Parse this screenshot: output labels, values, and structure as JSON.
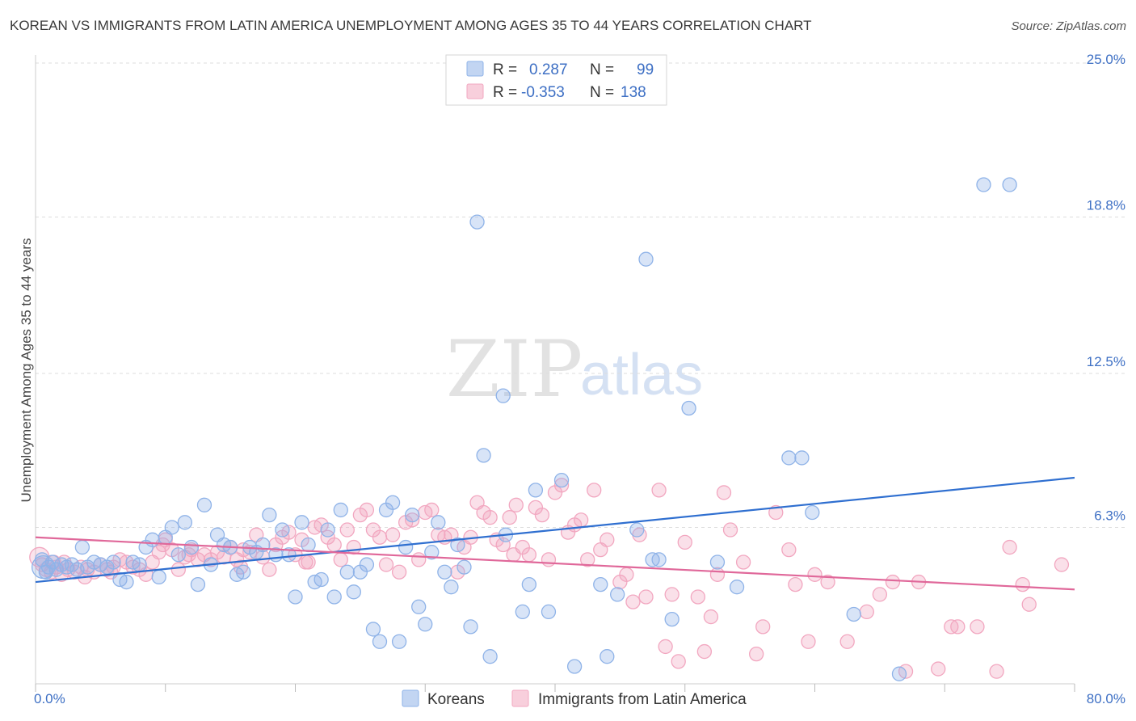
{
  "title": "KOREAN VS IMMIGRANTS FROM LATIN AMERICA UNEMPLOYMENT AMONG AGES 35 TO 44 YEARS CORRELATION CHART",
  "source": "Source: ZipAtlas.com",
  "watermark": {
    "zip": "ZIP",
    "atlas": "atlas"
  },
  "legend": {
    "rows": [
      {
        "r_label": "R =",
        "r_value": "0.287",
        "n_label": "N =",
        "n_value": "99",
        "color": "#8fb3e8"
      },
      {
        "r_label": "R =",
        "r_value": "-0.353",
        "n_label": "N =",
        "n_value": "138",
        "color": "#f2a7c0"
      }
    ]
  },
  "bottom_legend": [
    {
      "label": "Koreans",
      "color": "#8fb3e8"
    },
    {
      "label": "Immigrants from Latin America",
      "color": "#f2a7c0"
    }
  ],
  "chart_data": {
    "type": "scatter",
    "title": "KOREAN VS IMMIGRANTS FROM LATIN AMERICA UNEMPLOYMENT AMONG AGES 35 TO 44 YEARS CORRELATION CHART",
    "ylabel": "Unemployment Among Ages 35 to 44 years",
    "xlim": [
      0,
      80
    ],
    "ylim": [
      0,
      25
    ],
    "x_tick_labels": [
      "0.0%",
      "80.0%"
    ],
    "y_ticks": [
      6.3,
      12.5,
      18.8,
      25.0
    ],
    "y_tick_labels": [
      "6.3%",
      "12.5%",
      "18.8%",
      "25.0%"
    ],
    "grid": "horizontal dashed",
    "legend_position": "top-center",
    "series": [
      {
        "name": "Koreans",
        "color": "#8fb3e8",
        "line_color": "#2f6fd0",
        "trend": {
          "x": [
            0,
            80
          ],
          "y": [
            4.1,
            8.3
          ]
        },
        "points": [
          [
            0.5,
            5.0
          ],
          [
            0.8,
            4.5
          ],
          [
            1.0,
            4.7
          ],
          [
            1.3,
            4.9
          ],
          [
            1.6,
            4.6
          ],
          [
            2.0,
            4.8
          ],
          [
            2.4,
            4.7
          ],
          [
            2.8,
            4.8
          ],
          [
            3.2,
            4.6
          ],
          [
            3.6,
            5.5
          ],
          [
            4.0,
            4.7
          ],
          [
            4.5,
            4.9
          ],
          [
            5.0,
            4.8
          ],
          [
            5.5,
            4.7
          ],
          [
            6.0,
            4.9
          ],
          [
            6.5,
            4.2
          ],
          [
            7.0,
            4.1
          ],
          [
            7.5,
            4.9
          ],
          [
            8.0,
            4.8
          ],
          [
            8.5,
            5.5
          ],
          [
            9.0,
            5.8
          ],
          [
            9.5,
            4.3
          ],
          [
            10.0,
            5.9
          ],
          [
            10.5,
            6.3
          ],
          [
            11.0,
            5.2
          ],
          [
            11.5,
            6.5
          ],
          [
            12.0,
            5.5
          ],
          [
            12.5,
            4.0
          ],
          [
            13.0,
            7.2
          ],
          [
            13.5,
            4.8
          ],
          [
            14.0,
            6.0
          ],
          [
            14.5,
            5.6
          ],
          [
            15.0,
            5.5
          ],
          [
            15.5,
            4.4
          ],
          [
            16.0,
            4.5
          ],
          [
            16.5,
            5.5
          ],
          [
            17.0,
            5.3
          ],
          [
            17.5,
            5.6
          ],
          [
            18.0,
            6.8
          ],
          [
            18.5,
            5.2
          ],
          [
            19.0,
            6.2
          ],
          [
            19.5,
            5.2
          ],
          [
            20.0,
            3.5
          ],
          [
            20.5,
            6.5
          ],
          [
            21.0,
            5.6
          ],
          [
            21.5,
            4.1
          ],
          [
            22.0,
            4.2
          ],
          [
            22.5,
            6.2
          ],
          [
            23.0,
            3.5
          ],
          [
            23.5,
            7.0
          ],
          [
            24.0,
            4.5
          ],
          [
            24.5,
            3.7
          ],
          [
            25.0,
            4.5
          ],
          [
            25.5,
            4.8
          ],
          [
            26.0,
            2.2
          ],
          [
            26.5,
            1.7
          ],
          [
            27.0,
            7.0
          ],
          [
            27.5,
            7.3
          ],
          [
            28.0,
            1.7
          ],
          [
            28.5,
            5.5
          ],
          [
            29.0,
            6.8
          ],
          [
            29.5,
            3.1
          ],
          [
            30.0,
            2.4
          ],
          [
            30.5,
            5.3
          ],
          [
            31.0,
            6.5
          ],
          [
            31.5,
            4.5
          ],
          [
            32.0,
            3.9
          ],
          [
            32.5,
            5.6
          ],
          [
            33.0,
            4.7
          ],
          [
            33.5,
            2.3
          ],
          [
            34.0,
            18.6
          ],
          [
            34.5,
            9.2
          ],
          [
            35.0,
            1.1
          ],
          [
            36.0,
            11.6
          ],
          [
            36.2,
            6.0
          ],
          [
            37.5,
            2.9
          ],
          [
            38.0,
            4.0
          ],
          [
            38.5,
            7.8
          ],
          [
            39.5,
            2.9
          ],
          [
            40.5,
            8.2
          ],
          [
            41.5,
            0.7
          ],
          [
            43.5,
            4.0
          ],
          [
            44.0,
            1.1
          ],
          [
            44.8,
            3.6
          ],
          [
            46.3,
            6.2
          ],
          [
            47.0,
            17.1
          ],
          [
            47.5,
            5.0
          ],
          [
            48.0,
            5.0
          ],
          [
            49.0,
            2.6
          ],
          [
            50.3,
            11.1
          ],
          [
            52.5,
            4.9
          ],
          [
            54.0,
            3.9
          ],
          [
            58.0,
            9.1
          ],
          [
            59.0,
            9.1
          ],
          [
            59.8,
            6.9
          ],
          [
            63.0,
            2.8
          ],
          [
            66.5,
            0.4
          ],
          [
            73.0,
            20.1
          ],
          [
            75.0,
            20.1
          ]
        ]
      },
      {
        "name": "Immigrants from Latin America",
        "color": "#f2a7c0",
        "line_color": "#e0689a",
        "trend": {
          "x": [
            0,
            80
          ],
          "y": [
            5.9,
            3.8
          ]
        },
        "points": [
          [
            0.5,
            4.8
          ],
          [
            0.8,
            4.6
          ],
          [
            1.2,
            4.5
          ],
          [
            1.6,
            4.7
          ],
          [
            2.0,
            4.4
          ],
          [
            2.5,
            4.6
          ],
          [
            3.0,
            4.5
          ],
          [
            3.5,
            4.7
          ],
          [
            4.0,
            4.6
          ],
          [
            4.5,
            4.5
          ],
          [
            5.0,
            4.8
          ],
          [
            5.5,
            4.6
          ],
          [
            6.0,
            4.7
          ],
          [
            6.5,
            5.0
          ],
          [
            7.0,
            4.9
          ],
          [
            7.5,
            4.7
          ],
          [
            8.0,
            4.6
          ],
          [
            8.5,
            4.4
          ],
          [
            9.0,
            4.9
          ],
          [
            9.5,
            5.3
          ],
          [
            10.0,
            5.8
          ],
          [
            10.5,
            5.4
          ],
          [
            11.0,
            4.6
          ],
          [
            11.5,
            5.1
          ],
          [
            12.0,
            5.4
          ],
          [
            12.5,
            5.0
          ],
          [
            13.0,
            5.2
          ],
          [
            13.5,
            5.0
          ],
          [
            14.0,
            5.3
          ],
          [
            14.5,
            5.1
          ],
          [
            15.0,
            5.5
          ],
          [
            15.5,
            5.0
          ],
          [
            16.0,
            5.4
          ],
          [
            16.5,
            5.3
          ],
          [
            17.0,
            6.0
          ],
          [
            17.5,
            5.1
          ],
          [
            18.0,
            4.6
          ],
          [
            18.5,
            5.6
          ],
          [
            19.0,
            5.9
          ],
          [
            19.5,
            6.1
          ],
          [
            20.0,
            5.2
          ],
          [
            20.5,
            5.8
          ],
          [
            21.0,
            4.9
          ],
          [
            21.5,
            6.3
          ],
          [
            22.0,
            6.4
          ],
          [
            22.5,
            5.9
          ],
          [
            23.0,
            5.6
          ],
          [
            23.5,
            5.0
          ],
          [
            24.0,
            6.2
          ],
          [
            24.5,
            5.5
          ],
          [
            25.0,
            6.8
          ],
          [
            25.5,
            7.0
          ],
          [
            26.0,
            6.2
          ],
          [
            26.5,
            5.9
          ],
          [
            27.0,
            4.8
          ],
          [
            27.5,
            6.0
          ],
          [
            28.0,
            4.5
          ],
          [
            28.5,
            6.5
          ],
          [
            29.0,
            6.6
          ],
          [
            29.5,
            5.0
          ],
          [
            30.0,
            6.9
          ],
          [
            30.5,
            7.0
          ],
          [
            31.0,
            6.0
          ],
          [
            31.5,
            5.9
          ],
          [
            32.0,
            6.0
          ],
          [
            32.5,
            4.5
          ],
          [
            33.0,
            5.5
          ],
          [
            33.5,
            5.9
          ],
          [
            34.0,
            7.3
          ],
          [
            34.5,
            6.9
          ],
          [
            35.0,
            6.7
          ],
          [
            35.5,
            5.8
          ],
          [
            36.0,
            5.6
          ],
          [
            36.5,
            6.7
          ],
          [
            37.0,
            7.2
          ],
          [
            37.5,
            5.5
          ],
          [
            38.0,
            5.2
          ],
          [
            38.5,
            7.1
          ],
          [
            39.0,
            6.8
          ],
          [
            39.5,
            5.0
          ],
          [
            40.0,
            7.7
          ],
          [
            40.5,
            8.0
          ],
          [
            41.0,
            6.1
          ],
          [
            41.5,
            6.4
          ],
          [
            42.0,
            6.6
          ],
          [
            43.0,
            7.8
          ],
          [
            43.5,
            5.4
          ],
          [
            44.0,
            5.8
          ],
          [
            45.0,
            4.1
          ],
          [
            45.5,
            4.4
          ],
          [
            46.0,
            3.3
          ],
          [
            46.5,
            6.0
          ],
          [
            47.0,
            3.5
          ],
          [
            48.0,
            7.8
          ],
          [
            48.5,
            1.5
          ],
          [
            49.0,
            3.6
          ],
          [
            49.5,
            0.9
          ],
          [
            50.0,
            5.7
          ],
          [
            51.0,
            3.5
          ],
          [
            51.5,
            1.3
          ],
          [
            52.0,
            2.7
          ],
          [
            52.5,
            4.4
          ],
          [
            53.0,
            7.7
          ],
          [
            53.5,
            6.2
          ],
          [
            54.5,
            4.9
          ],
          [
            55.5,
            1.2
          ],
          [
            56.0,
            2.3
          ],
          [
            57.0,
            6.9
          ],
          [
            58.0,
            5.4
          ],
          [
            58.5,
            4.0
          ],
          [
            59.5,
            1.7
          ],
          [
            60.0,
            4.4
          ],
          [
            61.0,
            4.1
          ],
          [
            62.5,
            1.7
          ],
          [
            64.0,
            2.9
          ],
          [
            65.0,
            3.6
          ],
          [
            66.0,
            4.1
          ],
          [
            67.0,
            0.5
          ],
          [
            68.0,
            4.1
          ],
          [
            69.5,
            0.6
          ],
          [
            70.5,
            2.3
          ],
          [
            71.0,
            2.3
          ],
          [
            72.5,
            2.3
          ],
          [
            74.0,
            0.5
          ],
          [
            75.0,
            5.5
          ],
          [
            76.0,
            4.0
          ],
          [
            76.5,
            3.2
          ],
          [
            79.0,
            4.8
          ],
          [
            42.5,
            5.0
          ],
          [
            36.8,
            5.2
          ],
          [
            20.8,
            4.9
          ],
          [
            15.8,
            4.7
          ],
          [
            11.8,
            5.2
          ],
          [
            9.8,
            5.6
          ],
          [
            5.8,
            4.5
          ],
          [
            3.8,
            4.3
          ],
          [
            2.2,
            4.9
          ],
          [
            1.4,
            4.9
          ]
        ]
      }
    ]
  }
}
